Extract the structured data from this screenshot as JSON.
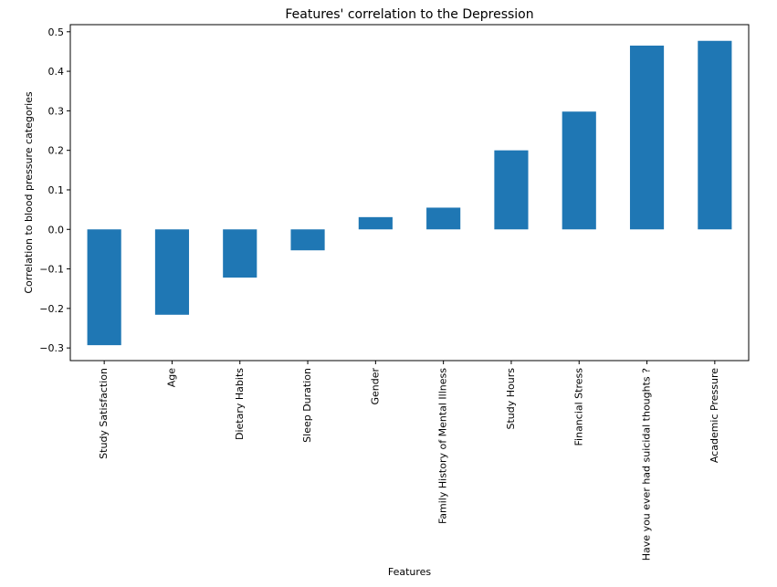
{
  "chart_data": {
    "type": "bar",
    "title": "Features' correlation to the Depression",
    "xlabel": "Features",
    "ylabel": "Correlation to blood pressure categories",
    "categories": [
      "Study Satisfaction",
      "Age",
      "Dietary Habits",
      "Sleep Duration",
      "Gender",
      "Family History of Mental Illness",
      "Study Hours",
      "Financial Stress",
      "Have you ever had suicidal thoughts ?",
      "Academic Pressure"
    ],
    "values": [
      -0.293,
      -0.216,
      -0.122,
      -0.053,
      0.031,
      0.055,
      0.2,
      0.298,
      0.465,
      0.477
    ],
    "ylim": [
      -0.332,
      0.518
    ],
    "yticks": [
      -0.3,
      -0.2,
      -0.1,
      0.0,
      0.1,
      0.2,
      0.3,
      0.4,
      0.5
    ],
    "ytick_labels": [
      "−0.3",
      "−0.2",
      "−0.1",
      "0.0",
      "0.1",
      "0.2",
      "0.3",
      "0.4",
      "0.5"
    ],
    "bar_color": "#1f77b4",
    "grid": false,
    "legend": false
  }
}
